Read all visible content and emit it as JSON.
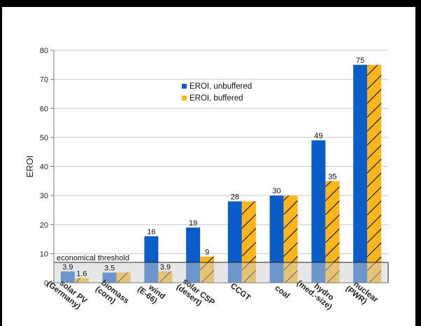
{
  "chart_data": {
    "type": "bar",
    "ylabel": "EROI",
    "ylim": [
      0,
      80
    ],
    "yticks": [
      0,
      10,
      20,
      30,
      40,
      50,
      60,
      70,
      80
    ],
    "categories": [
      [
        "solar PV",
        "(Germany)"
      ],
      [
        "biomass",
        "(corn)"
      ],
      [
        "wind",
        "(E-66)"
      ],
      [
        "solar CSP",
        "(desert)"
      ],
      [
        "CCGT"
      ],
      [
        "coal"
      ],
      [
        "hydro",
        "(med.-size)"
      ],
      [
        "nuclear",
        "(PWR)"
      ]
    ],
    "series": [
      {
        "name": "EROI, unbuffered",
        "color": "#0a5cc9",
        "values": [
          3.9,
          3.5,
          16,
          19,
          28,
          30,
          49,
          75
        ]
      },
      {
        "name": "EROI, buffered",
        "color": "#ffb61c",
        "hatched": true,
        "values": [
          1.6,
          3.5,
          3.9,
          9,
          28,
          30,
          35,
          75
        ]
      }
    ],
    "value_labels": [
      [
        "3.9",
        "1.6"
      ],
      [
        "3.5",
        null
      ],
      [
        "16",
        "3.9"
      ],
      [
        "19",
        "9"
      ],
      [
        "28",
        null
      ],
      [
        "30",
        null
      ],
      [
        "49",
        "35"
      ],
      [
        "75",
        null
      ]
    ],
    "threshold": {
      "label": "economical threshold",
      "value": 7
    },
    "legend_position": "upper-center",
    "grid": true
  }
}
